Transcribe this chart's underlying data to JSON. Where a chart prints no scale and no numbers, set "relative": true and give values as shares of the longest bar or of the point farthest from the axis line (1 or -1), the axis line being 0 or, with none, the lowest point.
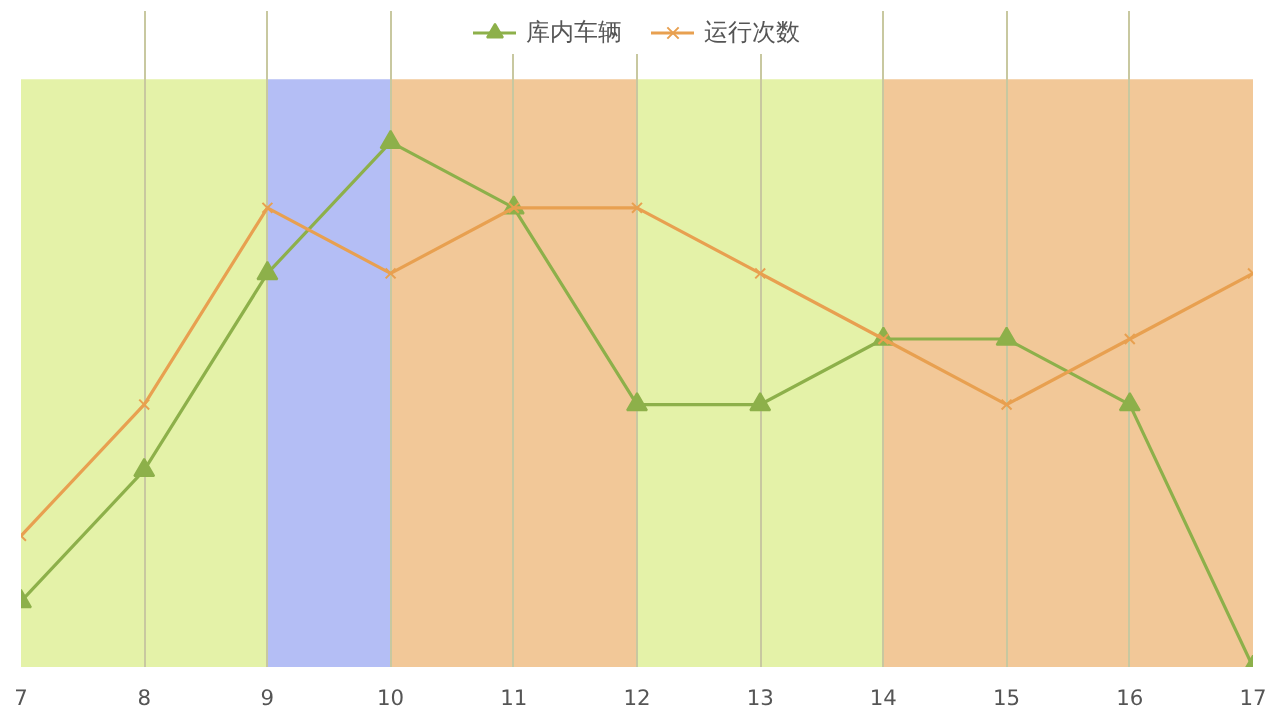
{
  "chart_data": {
    "type": "line",
    "relative": true,
    "x": [
      7,
      8,
      9,
      10,
      11,
      12,
      13,
      14,
      15,
      16,
      17
    ],
    "xlim": [
      7,
      17
    ],
    "xticks": [
      7,
      8,
      9,
      10,
      11,
      12,
      13,
      14,
      15,
      16,
      17
    ],
    "grid": "x",
    "legend": "top",
    "tick_labels": "x",
    "series": [
      {
        "name": "库内车辆",
        "color": "#8db04a",
        "marker": "triangle",
        "values": [
          0.125,
          0.375,
          0.75,
          1,
          0.875,
          0.5,
          0.5,
          0.625,
          0.625,
          0.5,
          0
        ]
      },
      {
        "name": "运行次数",
        "color": "#e8a050",
        "marker": "cross",
        "values": [
          0.25,
          0.5,
          0.875,
          0.75,
          0.875,
          0.875,
          0.75,
          0.625,
          0.5,
          0.625,
          0.75
        ]
      }
    ],
    "bands": [
      {
        "axis": "x",
        "from": 7,
        "to": 9,
        "color": "#e4f2a8"
      },
      {
        "axis": "x",
        "from": 9,
        "to": 10,
        "color": "#b4bef5"
      },
      {
        "axis": "x",
        "from": 10,
        "to": 12,
        "color": "#f2c898"
      },
      {
        "axis": "x",
        "from": 12,
        "to": 14,
        "color": "#e4f2a8"
      },
      {
        "axis": "x",
        "from": 14,
        "to": 17,
        "color": "#f2c898"
      }
    ]
  }
}
